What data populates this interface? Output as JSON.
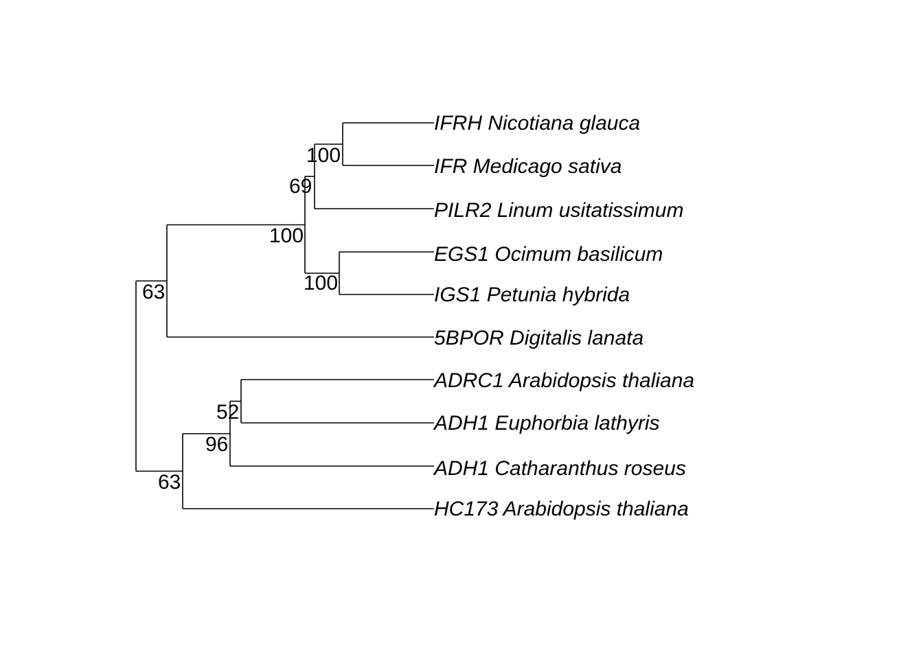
{
  "tree": {
    "type": "phylogram",
    "colors": {
      "lines": "#000000",
      "text": "#000000",
      "background": "#ffffff"
    },
    "tips": [
      {
        "id": "t1",
        "label": "IFRH Nicotiana glauca"
      },
      {
        "id": "t2",
        "label": "IFR Medicago sativa"
      },
      {
        "id": "t3",
        "label": "PILR2 Linum usitatissimum"
      },
      {
        "id": "t4",
        "label": "EGS1 Ocimum basilicum"
      },
      {
        "id": "t5",
        "label": "IGS1 Petunia hybrida"
      },
      {
        "id": "t6",
        "label": "5BPOR Digitalis lanata"
      },
      {
        "id": "t7",
        "label": "ADRC1 Arabidopsis thaliana"
      },
      {
        "id": "t8",
        "label": "ADH1 Euphorbia lathyris"
      },
      {
        "id": "t9",
        "label": "ADH1 Catharanthus roseus"
      },
      {
        "id": "t10",
        "label": "HC173 Arabidopsis thaliana"
      }
    ],
    "clades": [
      {
        "id": "n1",
        "children": [
          "t1",
          "t2"
        ],
        "support": "100"
      },
      {
        "id": "n2",
        "children": [
          "n1",
          "t3"
        ],
        "support": "69"
      },
      {
        "id": "n3",
        "children": [
          "t4",
          "t5"
        ],
        "support": "100"
      },
      {
        "id": "n4",
        "children": [
          "n2",
          "n3"
        ],
        "support": "100"
      },
      {
        "id": "n5",
        "children": [
          "n4",
          "t6"
        ],
        "support": "63"
      },
      {
        "id": "n6",
        "children": [
          "t7",
          "t8"
        ],
        "support": "52"
      },
      {
        "id": "n7",
        "children": [
          "n6",
          "t9"
        ],
        "support": "96"
      },
      {
        "id": "n8",
        "children": [
          "n7",
          "t10"
        ],
        "support": "63"
      },
      {
        "id": "root",
        "children": [
          "n5",
          "n8"
        ],
        "support": ""
      }
    ]
  }
}
